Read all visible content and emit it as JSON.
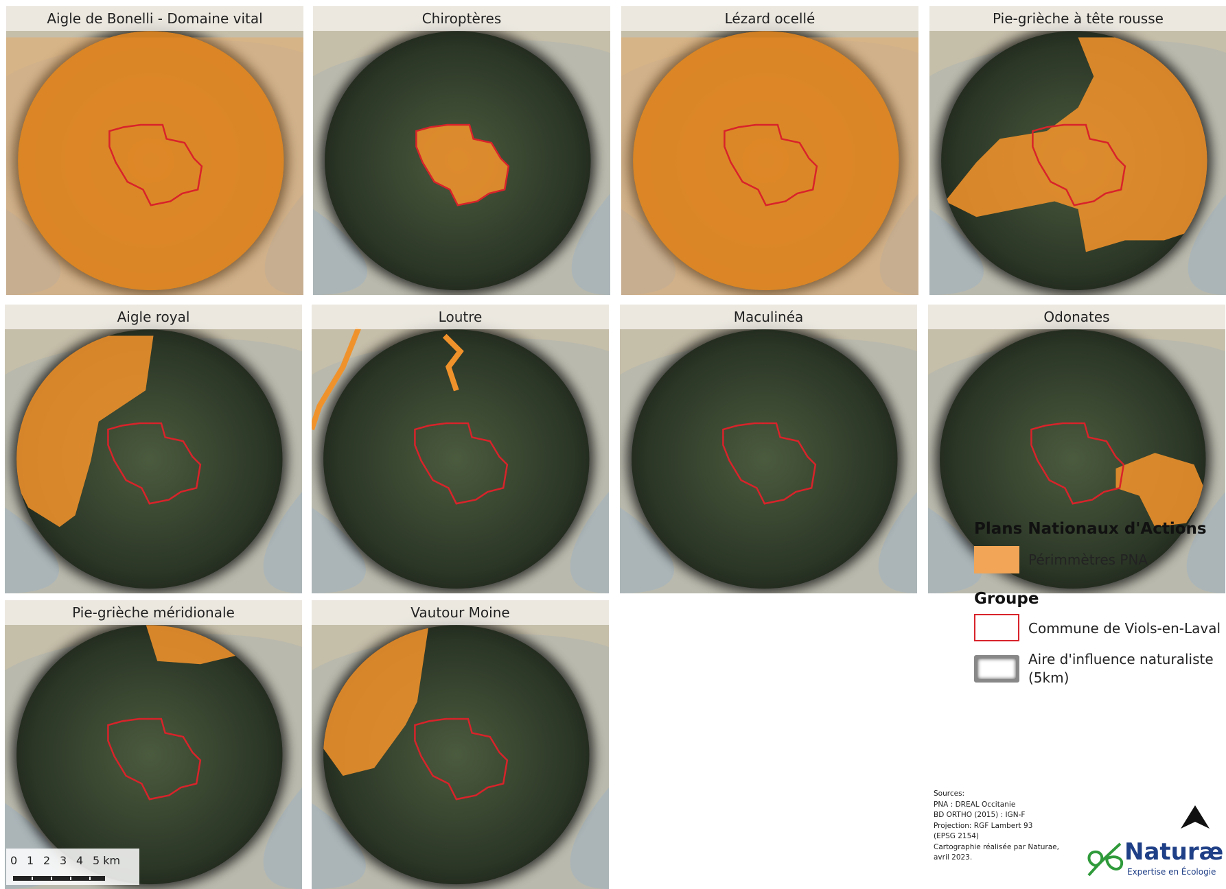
{
  "panels": [
    "Aigle de Bonelli - Domaine vital",
    "Chiroptères",
    "Lézard ocellé",
    "Pie-grièche à tête rousse",
    "Aigle royal",
    "Loutre",
    "Maculinéa",
    "Odonates",
    "Pie-grièche méridionale",
    "Vautour Moine"
  ],
  "legend": {
    "title_pna": "Plans Nationaux d'Actions",
    "pna": "Périmmètres PNA",
    "title_groupe": "Groupe",
    "commune": "Commune de Viols-en-Laval",
    "aire": "Aire d'influence naturaliste\n (5km)"
  },
  "sources": [
    "Sources:",
    "PNA : DREAL Occitanie",
    "BD ORTHO (2015) : IGN-F",
    "Projection: RGF Lambert 93",
    "(EPSG 2154)",
    "Cartographie réalisée par Naturae,",
    "avril 2023."
  ],
  "scale_bar": [
    "0",
    "1",
    "2",
    "3",
    "4",
    "5 km"
  ],
  "logo": {
    "name": "Naturæ",
    "tagline": "Expertise en Écologie"
  }
}
